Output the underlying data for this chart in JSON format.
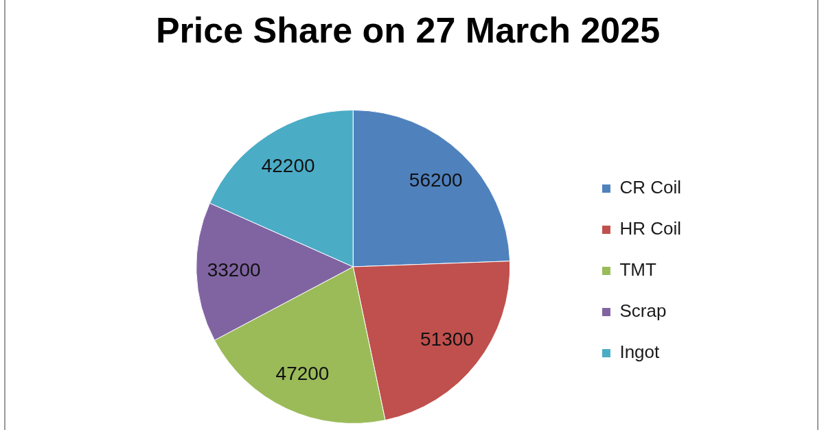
{
  "chart_data": {
    "type": "pie",
    "title": "Price Share on 27 March 2025",
    "categories": [
      "CR Coil",
      "HR Coil",
      "TMT",
      "Scrap",
      "Ingot"
    ],
    "values": [
      56200,
      51300,
      47200,
      33200,
      42200
    ],
    "colors": [
      "#4f81bd",
      "#c0504d",
      "#9bbb59",
      "#8064a2",
      "#4bacc6"
    ],
    "data_labels": true,
    "legend": "right"
  }
}
